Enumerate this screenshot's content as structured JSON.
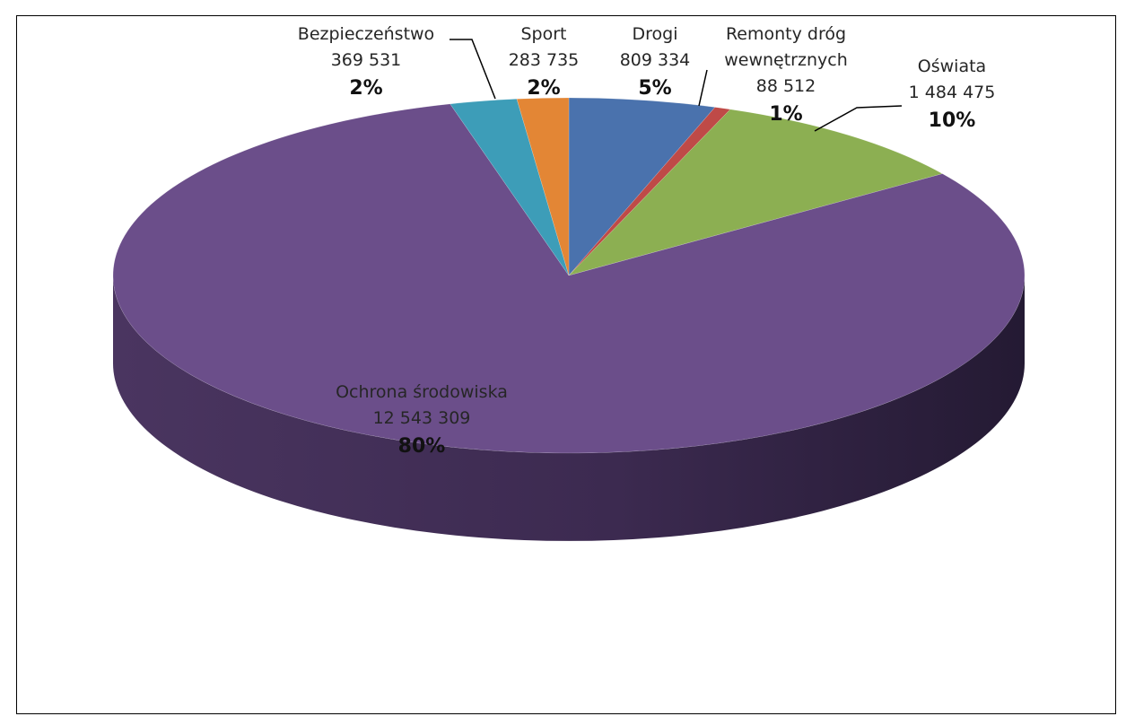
{
  "chart_data": {
    "type": "pie",
    "style": "3d",
    "title": "",
    "slices": [
      {
        "label": "Drogi",
        "value": 809334,
        "value_text": "809 334",
        "percent_text": "5%",
        "color": "#4a72ad"
      },
      {
        "label": "Remonty dróg wewnętrznych",
        "label_lines": [
          "Remonty dróg",
          "wewnętrznych"
        ],
        "value": 88512,
        "value_text": "88 512",
        "percent_text": "1%",
        "color": "#bf4a47"
      },
      {
        "label": "Oświata",
        "value": 1484475,
        "value_text": "1 484 475",
        "percent_text": "10%",
        "color": "#8caf52"
      },
      {
        "label": "Ochrona środowiska",
        "value": 12543309,
        "value_text": "12 543 309",
        "percent_text": "80%",
        "color": "#6b4e8a"
      },
      {
        "label": "Bezpieczeństwo",
        "value": 369531,
        "value_text": "369 531",
        "percent_text": "2%",
        "color": "#3d9db8"
      },
      {
        "label": "Sport",
        "value": 283735,
        "value_text": "283 735",
        "percent_text": "2%",
        "color": "#e38635"
      }
    ]
  }
}
